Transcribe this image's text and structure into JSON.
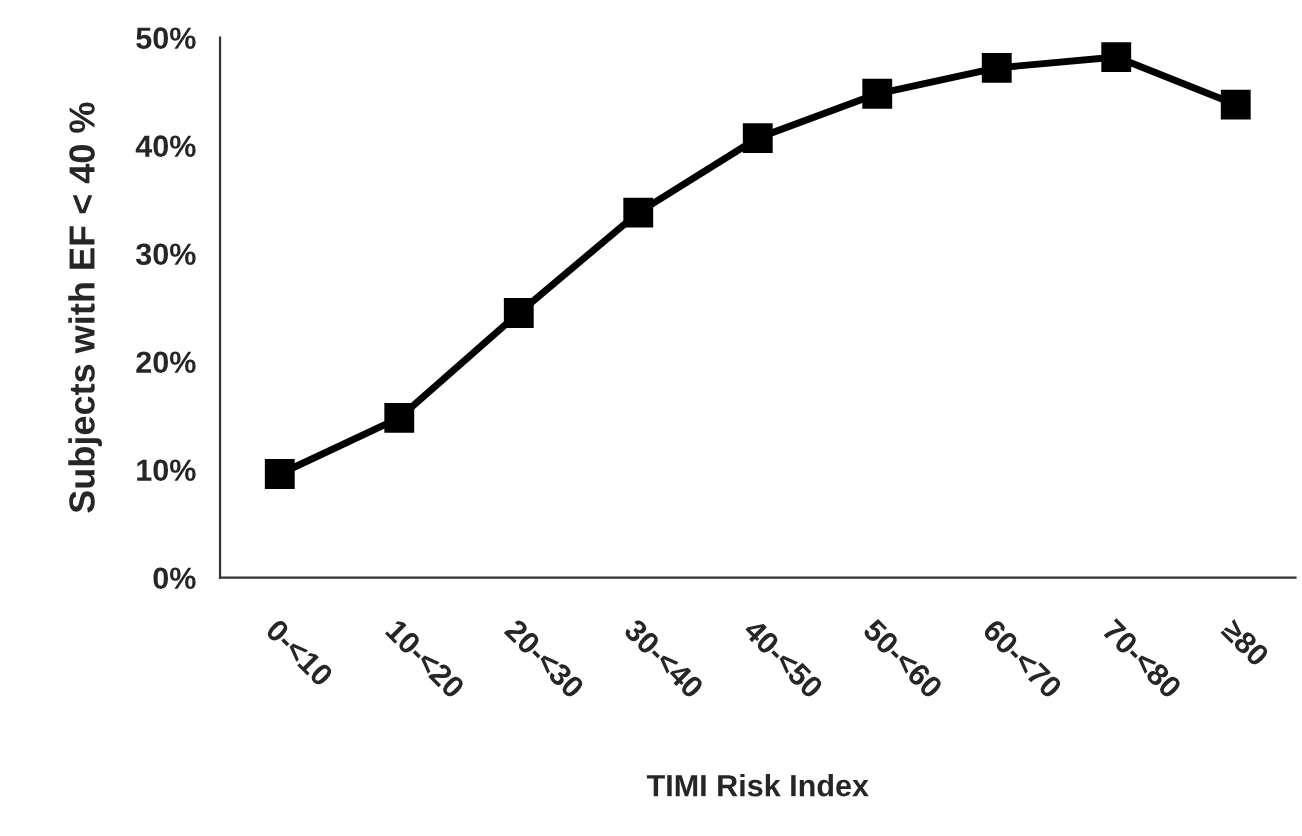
{
  "chart_data": {
    "type": "line",
    "xlabel": "TIMI Risk Index",
    "ylabel": "Subjects with EF < 40 %",
    "categories": [
      "0-<10",
      "10-<20",
      "20-<30",
      "30-<40",
      "40-<50",
      "50-<60",
      "60-<70",
      "70-<80",
      "≥80"
    ],
    "series": [
      {
        "color": "#000000",
        "values": [
          9.6,
          14.8,
          24.5,
          33.8,
          40.7,
          44.8,
          47.2,
          48.2,
          43.8
        ]
      }
    ],
    "ylim": [
      0,
      50
    ],
    "yticks": [
      {
        "value": 0,
        "label": "0%"
      },
      {
        "value": 10,
        "label": "10%"
      },
      {
        "value": 20,
        "label": "20%"
      },
      {
        "value": 30,
        "label": "30%"
      },
      {
        "value": 40,
        "label": "40%"
      },
      {
        "value": 50,
        "label": "50%"
      }
    ],
    "grid": false,
    "legend": false,
    "marker": "square",
    "line_style": "solid"
  }
}
